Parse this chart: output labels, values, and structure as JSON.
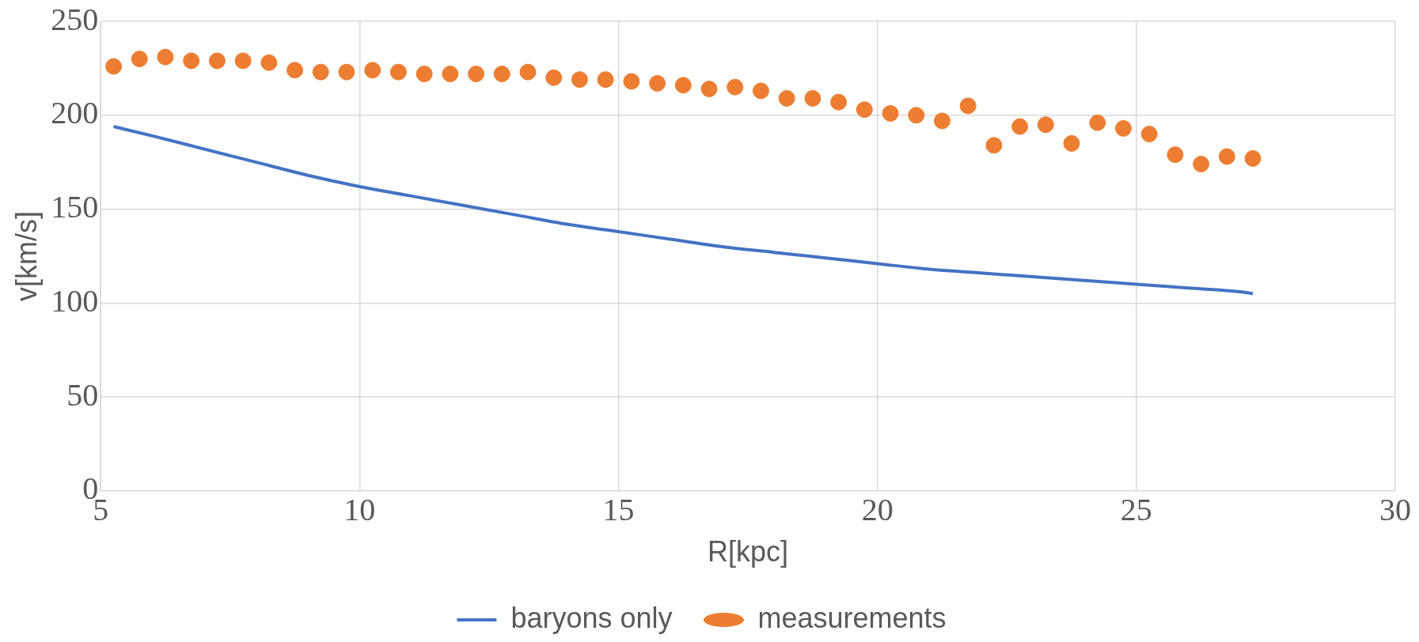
{
  "chart_data": {
    "type": "scatter",
    "xlabel": "R[kpc]",
    "ylabel": "v[km/s]",
    "xlim": [
      5,
      30
    ],
    "xticks": [
      5,
      10,
      15,
      20,
      25,
      30
    ],
    "ylim": [
      0,
      250
    ],
    "yticks": [
      0,
      50,
      100,
      150,
      200,
      250
    ],
    "grid": true,
    "legend": "bottom",
    "series": [
      {
        "name": "baryons only",
        "type": "line",
        "color": "#4472c4",
        "marker": "none",
        "line_style": "solid",
        "x": [
          5.25,
          6,
          7,
          8,
          9,
          10,
          11,
          12,
          13,
          14,
          15,
          16,
          17,
          18,
          19,
          20,
          21,
          22,
          23,
          24,
          25,
          26,
          27,
          27.25
        ],
        "values": [
          194,
          189,
          182,
          175,
          168,
          162,
          157,
          152,
          147,
          142,
          138,
          134,
          130,
          127,
          124,
          121,
          118,
          116,
          114,
          112,
          110,
          108,
          106,
          105
        ]
      },
      {
        "name": "measurements",
        "type": "scatter",
        "color": "#ed7d31",
        "marker": "circle",
        "x": [
          5.25,
          5.75,
          6.25,
          6.75,
          7.25,
          7.75,
          8.25,
          8.75,
          9.25,
          9.75,
          10.25,
          10.75,
          11.25,
          11.75,
          12.25,
          12.75,
          13.25,
          13.75,
          14.25,
          14.75,
          15.25,
          15.75,
          16.25,
          16.75,
          17.25,
          17.75,
          18.25,
          18.75,
          19.25,
          19.75,
          20.25,
          20.75,
          21.25,
          21.75,
          22.25,
          22.75,
          23.25,
          23.75,
          24.25,
          24.75,
          25.25,
          25.75,
          26.25,
          26.75,
          27.25
        ],
        "values": [
          226,
          230,
          231,
          229,
          229,
          229,
          228,
          224,
          223,
          223,
          224,
          223,
          222,
          222,
          222,
          222,
          223,
          220,
          219,
          219,
          218,
          217,
          216,
          214,
          215,
          213,
          209,
          209,
          207,
          203,
          201,
          200,
          197,
          205,
          184,
          194,
          195,
          185,
          196,
          193,
          190,
          179,
          174,
          178,
          177
        ]
      }
    ]
  }
}
